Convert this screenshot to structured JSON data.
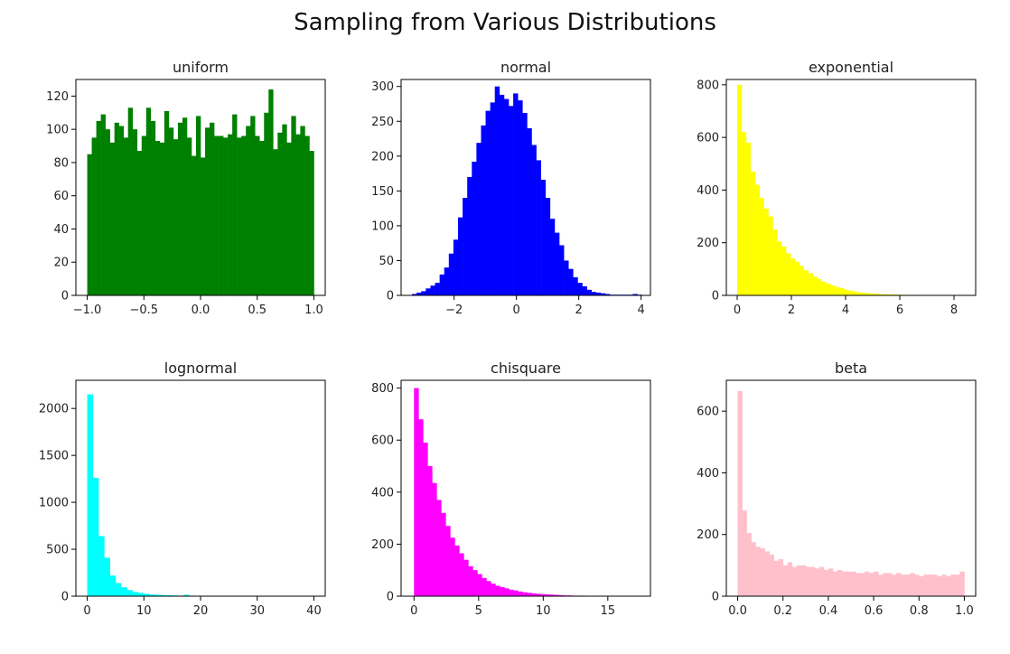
{
  "figure": {
    "title": "Sampling from Various Distributions"
  },
  "chart_data": [
    {
      "type": "bar",
      "title": "uniform",
      "color": "#008000",
      "xlim": [
        -1.1,
        1.1
      ],
      "ylim": [
        0,
        130
      ],
      "xticks": [
        -1.0,
        -0.5,
        0.0,
        0.5,
        1.0
      ],
      "xtick_labels": [
        "−1.0",
        "−0.5",
        "0.0",
        "0.5",
        "1.0"
      ],
      "yticks": [
        0,
        20,
        40,
        60,
        80,
        100,
        120
      ],
      "ytick_labels": [
        "0",
        "20",
        "40",
        "60",
        "80",
        "100",
        "120"
      ],
      "bin_start": -1.0,
      "bin_end": 1.0,
      "values": [
        85,
        95,
        105,
        109,
        100,
        92,
        104,
        102,
        95,
        113,
        100,
        87,
        96,
        113,
        105,
        93,
        92,
        111,
        101,
        94,
        104,
        107,
        95,
        84,
        108,
        83,
        101,
        104,
        96,
        96,
        95,
        97,
        109,
        95,
        96,
        102,
        108,
        96,
        93,
        110,
        124,
        88,
        98,
        103,
        92,
        108,
        97,
        102,
        96,
        87
      ]
    },
    {
      "type": "bar",
      "title": "normal",
      "color": "#0000ff",
      "xlim": [
        -3.7,
        4.3
      ],
      "ylim": [
        0,
        310
      ],
      "xticks": [
        -2,
        0,
        2,
        4
      ],
      "xtick_labels": [
        "−2",
        "0",
        "2",
        "4"
      ],
      "yticks": [
        0,
        50,
        100,
        150,
        200,
        250,
        300
      ],
      "ytick_labels": [
        "0",
        "50",
        "100",
        "150",
        "200",
        "250",
        "300"
      ],
      "bin_start": -3.35,
      "bin_end": 4.03,
      "values": [
        2,
        4,
        6,
        10,
        14,
        18,
        30,
        40,
        60,
        80,
        112,
        140,
        170,
        192,
        219,
        244,
        265,
        277,
        300,
        288,
        282,
        272,
        290,
        280,
        262,
        240,
        216,
        194,
        166,
        140,
        110,
        90,
        72,
        50,
        38,
        26,
        18,
        13,
        8,
        5,
        4,
        3,
        2,
        1,
        1,
        1,
        1,
        1,
        2,
        1
      ]
    },
    {
      "type": "bar",
      "title": "exponential",
      "color": "#ffff00",
      "xlim": [
        -0.4,
        8.8
      ],
      "ylim": [
        0,
        820
      ],
      "xticks": [
        0,
        2,
        4,
        6,
        8
      ],
      "xtick_labels": [
        "0",
        "2",
        "4",
        "6",
        "8"
      ],
      "yticks": [
        0,
        200,
        400,
        600,
        800
      ],
      "ytick_labels": [
        "0",
        "200",
        "400",
        "600",
        "800"
      ],
      "bin_start": 0.0,
      "bin_end": 8.2,
      "values": [
        800,
        620,
        580,
        470,
        420,
        370,
        330,
        300,
        250,
        205,
        185,
        160,
        140,
        128,
        112,
        95,
        85,
        72,
        62,
        52,
        45,
        38,
        32,
        28,
        22,
        18,
        15,
        12,
        10,
        8,
        7,
        6,
        5,
        4,
        4,
        3,
        3,
        2,
        2,
        2,
        1,
        1,
        1,
        1,
        1,
        1,
        1,
        1,
        1,
        1
      ]
    },
    {
      "type": "bar",
      "title": "lognormal",
      "color": "#00ffff",
      "xlim": [
        -2,
        42
      ],
      "ylim": [
        0,
        2300
      ],
      "xticks": [
        0,
        10,
        20,
        30,
        40
      ],
      "xtick_labels": [
        "0",
        "10",
        "20",
        "30",
        "40"
      ],
      "yticks": [
        0,
        500,
        1000,
        1500,
        2000
      ],
      "ytick_labels": [
        "0",
        "500",
        "1000",
        "1500",
        "2000"
      ],
      "bin_start": 0.0,
      "bin_end": 40.0,
      "values": [
        2150,
        1260,
        640,
        410,
        220,
        140,
        95,
        65,
        45,
        35,
        25,
        18,
        15,
        12,
        10,
        8,
        6,
        15,
        5,
        3,
        2,
        2,
        1,
        1,
        1,
        1,
        0,
        0,
        0,
        0,
        0,
        0,
        0,
        0,
        0,
        0,
        0,
        0,
        0,
        1
      ]
    },
    {
      "type": "bar",
      "title": "chisquare",
      "color": "#ff00ff",
      "xlim": [
        -1,
        18.3
      ],
      "ylim": [
        0,
        830
      ],
      "xticks": [
        0,
        5,
        10,
        15
      ],
      "xtick_labels": [
        "0",
        "5",
        "10",
        "15"
      ],
      "yticks": [
        0,
        200,
        400,
        600,
        800
      ],
      "ytick_labels": [
        "0",
        "200",
        "400",
        "600",
        "800"
      ],
      "bin_start": 0.0,
      "bin_end": 17.5,
      "values": [
        800,
        680,
        590,
        500,
        435,
        370,
        320,
        270,
        225,
        195,
        165,
        140,
        115,
        100,
        85,
        70,
        58,
        48,
        40,
        35,
        30,
        25,
        22,
        18,
        15,
        13,
        11,
        9,
        8,
        7,
        6,
        5,
        4,
        3,
        3,
        2,
        2,
        2,
        1,
        1,
        1,
        1,
        1,
        1,
        0,
        0,
        0,
        0,
        0,
        1
      ]
    },
    {
      "type": "bar",
      "title": "beta",
      "color": "#ffc0cb",
      "xlim": [
        -0.05,
        1.05
      ],
      "ylim": [
        0,
        700
      ],
      "xticks": [
        0.0,
        0.2,
        0.4,
        0.6,
        0.8,
        1.0
      ],
      "xtick_labels": [
        "0.0",
        "0.2",
        "0.4",
        "0.6",
        "0.8",
        "1.0"
      ],
      "yticks": [
        0,
        200,
        400,
        600
      ],
      "ytick_labels": [
        "0",
        "200",
        "400",
        "600"
      ],
      "bin_start": 0.0,
      "bin_end": 1.0,
      "values": [
        665,
        278,
        205,
        175,
        160,
        155,
        145,
        135,
        115,
        120,
        100,
        110,
        95,
        100,
        100,
        95,
        95,
        90,
        95,
        85,
        90,
        80,
        85,
        80,
        80,
        80,
        75,
        75,
        80,
        75,
        80,
        70,
        75,
        75,
        70,
        75,
        70,
        70,
        75,
        70,
        65,
        70,
        70,
        70,
        65,
        70,
        65,
        70,
        70,
        80
      ]
    }
  ]
}
